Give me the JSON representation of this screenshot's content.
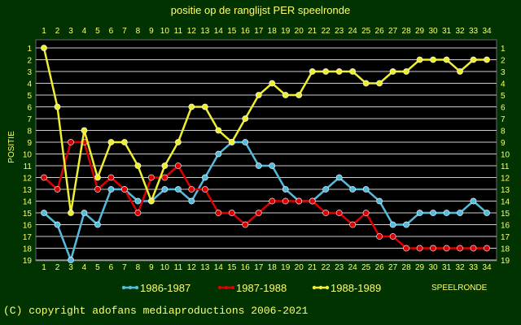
{
  "colors": {
    "background": "#003300",
    "plot_background": "#000000",
    "grid": "#cccccc",
    "frame": "#666666",
    "text": "#ffff66"
  },
  "chart_data": {
    "type": "line",
    "title": "positie op de ranglijst PER speelronde",
    "xlabel": "SPEELRONDE",
    "ylabel": "POSITIE",
    "x": [
      1,
      2,
      3,
      4,
      5,
      6,
      7,
      8,
      9,
      10,
      11,
      12,
      13,
      14,
      15,
      16,
      17,
      18,
      19,
      20,
      21,
      22,
      23,
      24,
      25,
      26,
      27,
      28,
      29,
      30,
      31,
      32,
      33,
      34
    ],
    "xlim": [
      1,
      34
    ],
    "ylim": [
      1,
      19
    ],
    "y_inverted": true,
    "y_ticks": [
      1,
      2,
      3,
      4,
      5,
      6,
      7,
      8,
      9,
      10,
      11,
      12,
      13,
      14,
      15,
      16,
      17,
      18,
      19
    ],
    "grid": true,
    "legend_position": "bottom",
    "series": [
      {
        "name": "1986-1987",
        "color": "#55bbdd",
        "values": [
          15,
          16,
          19,
          15,
          16,
          13,
          13,
          14,
          14,
          13,
          13,
          14,
          12,
          10,
          9,
          9,
          11,
          11,
          13,
          14,
          14,
          13,
          12,
          13,
          13,
          14,
          16,
          16,
          15,
          15,
          15,
          15,
          14,
          15
        ]
      },
      {
        "name": "1987-1988",
        "color": "#dd0000",
        "values": [
          12,
          13,
          9,
          9,
          13,
          12,
          13,
          15,
          12,
          12,
          11,
          13,
          13,
          15,
          15,
          16,
          15,
          14,
          14,
          14,
          14,
          15,
          15,
          16,
          15,
          17,
          17,
          18,
          18,
          18,
          18,
          18,
          18,
          18
        ]
      },
      {
        "name": "1988-1989",
        "color": "#eeee33",
        "values": [
          1,
          6,
          15,
          8,
          12,
          9,
          9,
          11,
          14,
          11,
          9,
          6,
          6,
          8,
          9,
          7,
          5,
          4,
          5,
          5,
          3,
          3,
          3,
          3,
          4,
          4,
          3,
          3,
          2,
          2,
          2,
          3,
          2,
          2
        ]
      }
    ]
  },
  "footer": {
    "copyright": "(C) copyright adofans mediaproductions 2006-2021"
  }
}
